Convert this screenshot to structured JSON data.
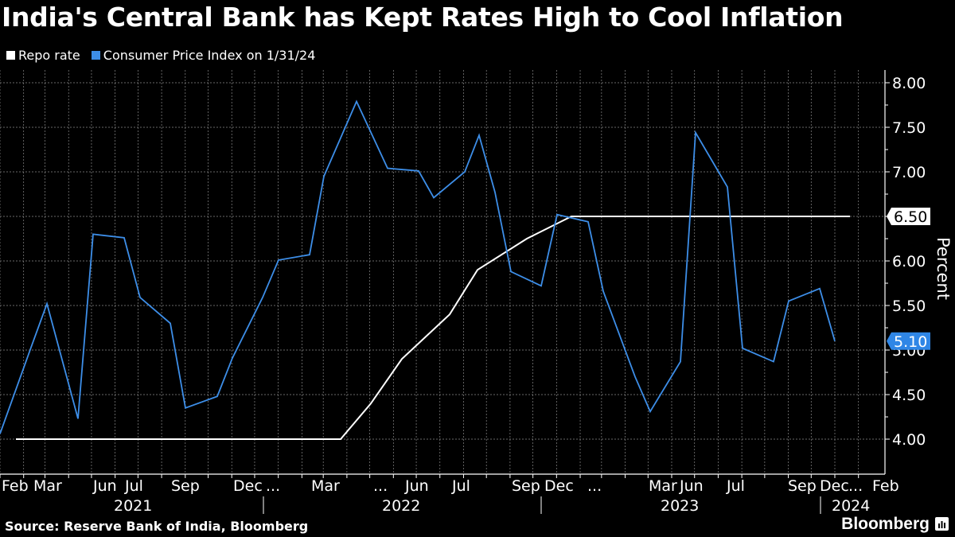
{
  "header": {
    "title": "India's Central Bank has Kept Rates High to Cool Inflation"
  },
  "legend": [
    {
      "label": "Repo rate",
      "color": "#ffffff"
    },
    {
      "label": "Consumer Price Index on 1/31/24",
      "color": "#3d8ee8"
    }
  ],
  "footer": {
    "source": "Source: Reserve Bank of India, Bloomberg",
    "brand": "Bloomberg"
  },
  "chart_data": {
    "type": "line",
    "title": "India's Central Bank has Kept Rates High to Cool Inflation",
    "xlabel": "",
    "ylabel": "Percent",
    "ylim": [
      3.75,
      8.1
    ],
    "yticks": [
      4.0,
      4.5,
      5.0,
      5.5,
      6.0,
      6.5,
      7.0,
      7.5,
      8.0
    ],
    "ytick_labels": [
      "4.00",
      "4.50",
      "5.00",
      "5.50",
      "6.00",
      "6.50",
      "7.00",
      "7.50",
      "8.00"
    ],
    "grid": true,
    "legend_position": "top-left",
    "x_month_labels": [
      "Feb",
      "Mar",
      "Jun",
      "Jul",
      "Sep",
      "Dec",
      "...",
      "Mar",
      "...",
      "Jun",
      "Jul",
      "Sep",
      "Dec",
      "...",
      "Mar",
      "Jun",
      "Jul",
      "Sep",
      "Dec",
      "...",
      "Feb"
    ],
    "x_year_labels": [
      "2021",
      "2022",
      "2023",
      "2024"
    ],
    "x": [
      "2021-01",
      "2021-02",
      "2021-03",
      "2021-04",
      "2021-05",
      "2021-06",
      "2021-07",
      "2021-08",
      "2021-09",
      "2021-10",
      "2021-11",
      "2021-12",
      "2022-01",
      "2022-02",
      "2022-03",
      "2022-04",
      "2022-05",
      "2022-06",
      "2022-07",
      "2022-08",
      "2022-09",
      "2022-10",
      "2022-11",
      "2022-12",
      "2023-01",
      "2023-02",
      "2023-03",
      "2023-04",
      "2023-05",
      "2023-06",
      "2023-07",
      "2023-08",
      "2023-09",
      "2023-10",
      "2023-11",
      "2023-12",
      "2024-01"
    ],
    "series": [
      {
        "name": "Consumer Price Index on 1/31/24",
        "color": "#3d8ee8",
        "values": [
          4.06,
          5.03,
          5.52,
          4.23,
          6.3,
          6.26,
          5.59,
          5.3,
          4.35,
          4.48,
          4.91,
          5.59,
          6.01,
          6.07,
          6.95,
          7.79,
          7.04,
          7.01,
          6.71,
          7.0,
          7.41,
          6.77,
          5.88,
          5.72,
          6.52,
          6.44,
          5.66,
          4.7,
          4.31,
          4.87,
          7.44,
          6.83,
          5.02,
          4.87,
          5.55,
          5.69,
          5.1
        ],
        "last_value_label": "5.10"
      },
      {
        "name": "Repo rate",
        "color": "#ffffff",
        "points": [
          [
            "2021-02-01",
            4.0
          ],
          [
            "2022-05-04",
            4.0
          ],
          [
            "2022-06-08",
            4.4
          ],
          [
            "2022-08-05",
            4.9
          ],
          [
            "2022-09-30",
            5.4
          ],
          [
            "2022-12-07",
            5.9
          ],
          [
            "2023-02-08",
            6.25
          ],
          [
            "2023-02-08",
            6.5
          ],
          [
            "2024-02-08",
            6.5
          ]
        ],
        "last_value_label": "6.50"
      }
    ]
  }
}
